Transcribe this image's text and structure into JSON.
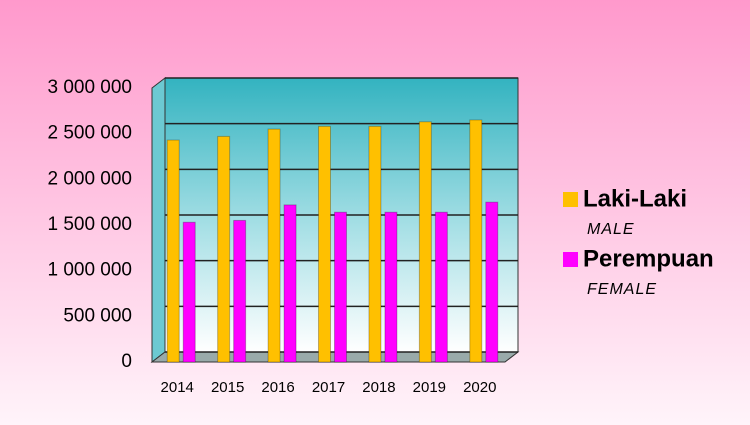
{
  "chart_data": {
    "type": "bar",
    "categories": [
      "2014",
      "2015",
      "2016",
      "2017",
      "2018",
      "2019",
      "2020"
    ],
    "series": [
      {
        "name": "Laki-Laki",
        "subtitle": "MALE",
        "color": "#ffc000",
        "values": [
          2430000,
          2470000,
          2550000,
          2580000,
          2580000,
          2630000,
          2650000
        ]
      },
      {
        "name": "Perempuan",
        "subtitle": "FEMALE",
        "color": "#ff00ff",
        "values": [
          1530000,
          1550000,
          1720000,
          1640000,
          1640000,
          1640000,
          1750000
        ]
      }
    ],
    "ylim": [
      0,
      3000000
    ],
    "yticks": [
      0,
      {
        "value": 500000,
        "label": "500 000"
      },
      {
        "value": 1000000,
        "label": "1 000 000"
      },
      {
        "value": 1500000,
        "label": "1 500 000"
      },
      {
        "value": 2000000,
        "label": "2 000 000"
      },
      {
        "value": 2500000,
        "label": "2 500 000"
      },
      {
        "value": 3000000,
        "label": "3 000 000"
      }
    ],
    "grid": true,
    "legend": "right"
  }
}
